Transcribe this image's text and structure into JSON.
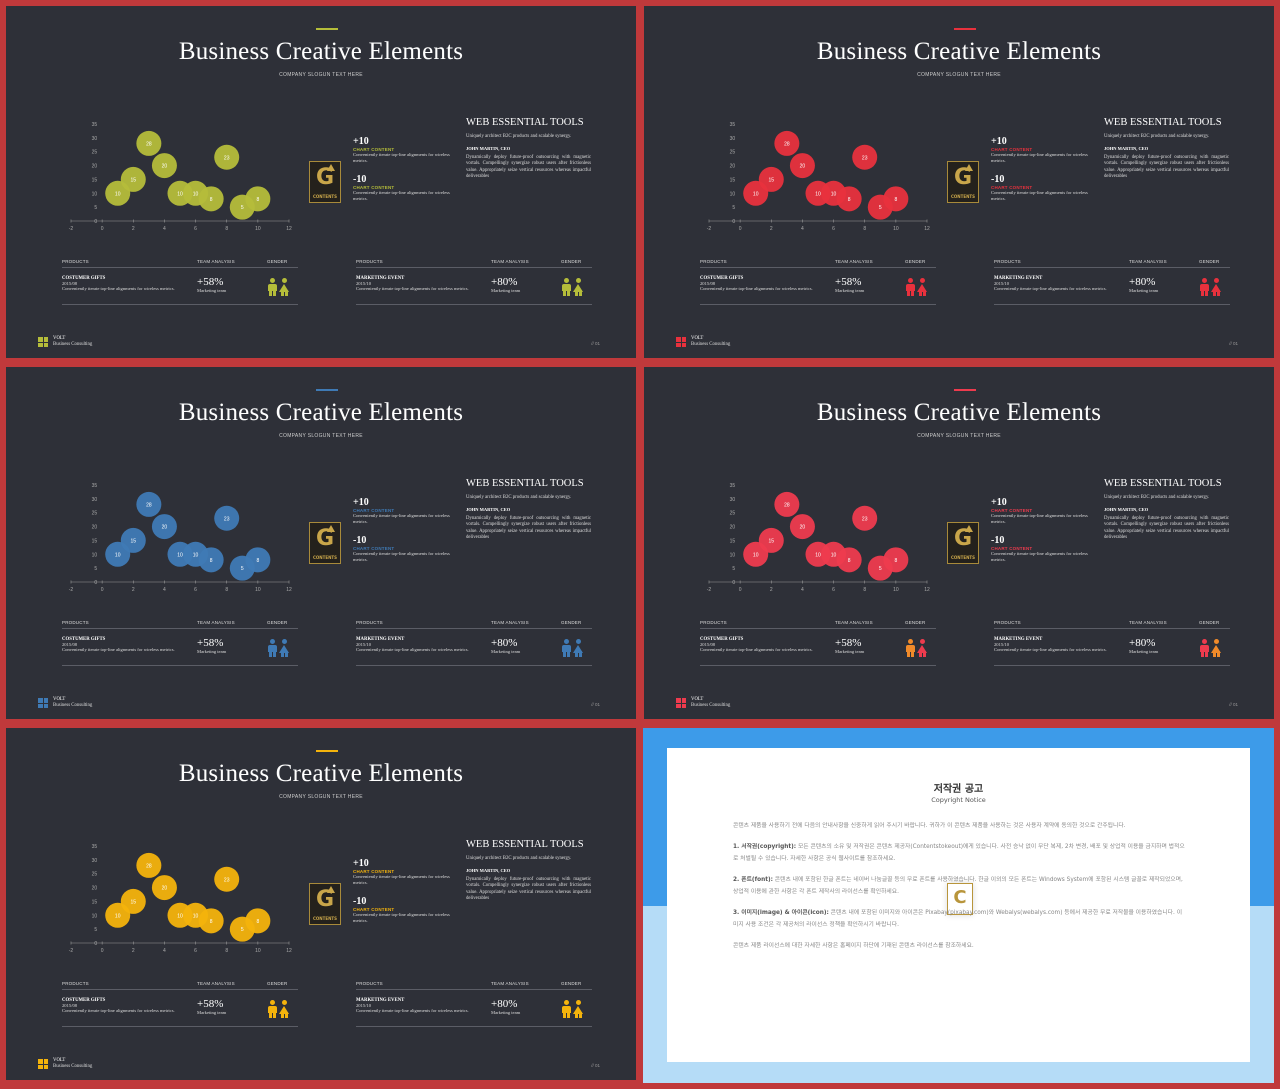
{
  "slides": [
    {
      "accent": "#b5bd3a",
      "slide_number": "// 01",
      "product_gender": [
        "male",
        "female"
      ],
      "event_gender": [
        "male",
        "female"
      ]
    },
    {
      "accent": "#e8313d",
      "slide_number": "// 01",
      "product_gender": [
        "male",
        "female"
      ],
      "event_gender": [
        "male",
        "female"
      ]
    },
    {
      "accent": "#3f7ab5",
      "slide_number": "// 01",
      "product_gender": [
        "male",
        "female"
      ],
      "event_gender": [
        "male",
        "female"
      ]
    },
    {
      "accent": "#ee3b4e",
      "slide_number": "// 01",
      "product_gender": [
        "male",
        "female"
      ],
      "event_gender": [
        "male",
        "female"
      ],
      "accent2": "#f08a2a"
    },
    {
      "accent": "#f4b30c",
      "slide_number": "// 01",
      "product_gender": [
        "male",
        "female"
      ],
      "event_gender": [
        "male",
        "female"
      ]
    }
  ],
  "content": {
    "title": "Business Creative Elements",
    "slogan": "COMPANY SLOGUN TEXT HERE",
    "metric1": {
      "value": "+10",
      "label": "CHART CONTENT",
      "desc": "Conveniently iterate top-line alignments for wireless metrics."
    },
    "metric2": {
      "value": "-10",
      "label": "CHART CONTENT",
      "desc": "Conveniently iterate top-line alignments for wireless metrics."
    },
    "badge": {
      "letter": "G",
      "caption": "CONTENTS"
    },
    "web": {
      "title": "WEB ESSENTIAL TOOLS",
      "para1": "Uniquely architect B2C products and scalable synergy.",
      "author": "JOHN MARTIN, CEO",
      "para2": "Dynamically deploy future-proof outsourcing with magnetic vortals. Compellingly synergize robust users after frictionless value. Appropriately seize vertical resources whereas impactful deliverables"
    },
    "table_headers": {
      "products": "PRODUCTS",
      "team": "TEAM ANALYSIS",
      "gender": "GENDER"
    },
    "row1": {
      "name": "COSTUMER GIFTS",
      "date": "2015/08",
      "desc": "Conveniently iterate top-line alignments for wireless metrics.",
      "pct": "+58%",
      "team": "Marketing team"
    },
    "row2": {
      "name": "MARKETING EVENT",
      "date": "2015/10",
      "desc": "Conveniently iterate top-line alignments for wireless metrics.",
      "pct": "+80%",
      "team": "Marketing team"
    },
    "footer": {
      "brand": "VOLT",
      "sub": "Business  Consulting"
    }
  },
  "chart_data": {
    "type": "scatter",
    "x_ticks": [
      "-2",
      "0",
      "2",
      "4",
      "6",
      "8",
      "10",
      "12"
    ],
    "y_ticks": [
      "0",
      "5",
      "10",
      "15",
      "20",
      "25",
      "30",
      "35"
    ],
    "xlim": [
      -2,
      12
    ],
    "ylim": [
      0,
      35
    ],
    "points": [
      {
        "x": 1,
        "y": 10,
        "label": "10"
      },
      {
        "x": 2,
        "y": 15,
        "label": "15"
      },
      {
        "x": 3,
        "y": 28,
        "label": "28"
      },
      {
        "x": 4,
        "y": 20,
        "label": "20"
      },
      {
        "x": 5,
        "y": 10,
        "label": "10"
      },
      {
        "x": 6,
        "y": 10,
        "label": "10"
      },
      {
        "x": 7,
        "y": 8,
        "label": "8"
      },
      {
        "x": 8,
        "y": 23,
        "label": "23"
      },
      {
        "x": 9,
        "y": 5,
        "label": "5"
      },
      {
        "x": 10,
        "y": 8,
        "label": "8"
      }
    ]
  },
  "notice": {
    "title": "저작권 공고",
    "subtitle": "Copyright Notice",
    "intro": "콘텐츠 제품을 사용하기 전에 다음의 안내사항을 신중하게 읽어 주시기 바랍니다. 귀하가 이 콘텐츠 제품을 사용하는 것은 사용자 계약에 동의한 것으로 간주됩니다.",
    "s1_head": "1. 서작권(copyright):",
    "s1": "모든 콘텐츠의 소유 및 저작권은 콘텐츠 제공자(Contentstokeout)에게 있습니다. 사전 승낙 없이 무단 복제, 2차 변경, 배포 및 상업적 이용을 금지하며 법적으로 처벌될 수 있습니다. 자세한 사항은 공식 웹사이트를 참조하세요.",
    "s2_head": "2. 폰트(font):",
    "s2": "콘텐츠 내에 포함된 한글 폰트는 네이버 나눔글꼴 등의 무료 폰트를 사용하였습니다. 한글 이외의 모든 폰트는 Windows System에 포함된 시스템 글꼴로 제작되었으며, 상업적 이용에 관한 사항은 각 폰트 제작사의 라이선스를 확인하세요.",
    "s3_head": "3. 이미지(image) & 아이콘(icon):",
    "s3": "콘텐츠 내에 포함된 이미지와 아이콘은 Pixabay(pixabay.com)와 Webalys(webalys.com) 등에서 제공한 무료 저작물을 이용하였습니다. 이미지 사용 조건은 각 제공처의 라이선스 정책을 확인하시기 바랍니다.",
    "outro": "콘텐츠 제품 라이선스에 대한 자세한 사항은 홈페이지 하단에 기재된 콘텐츠 라이선스를 참조하세요.",
    "logo_letter": "C"
  }
}
